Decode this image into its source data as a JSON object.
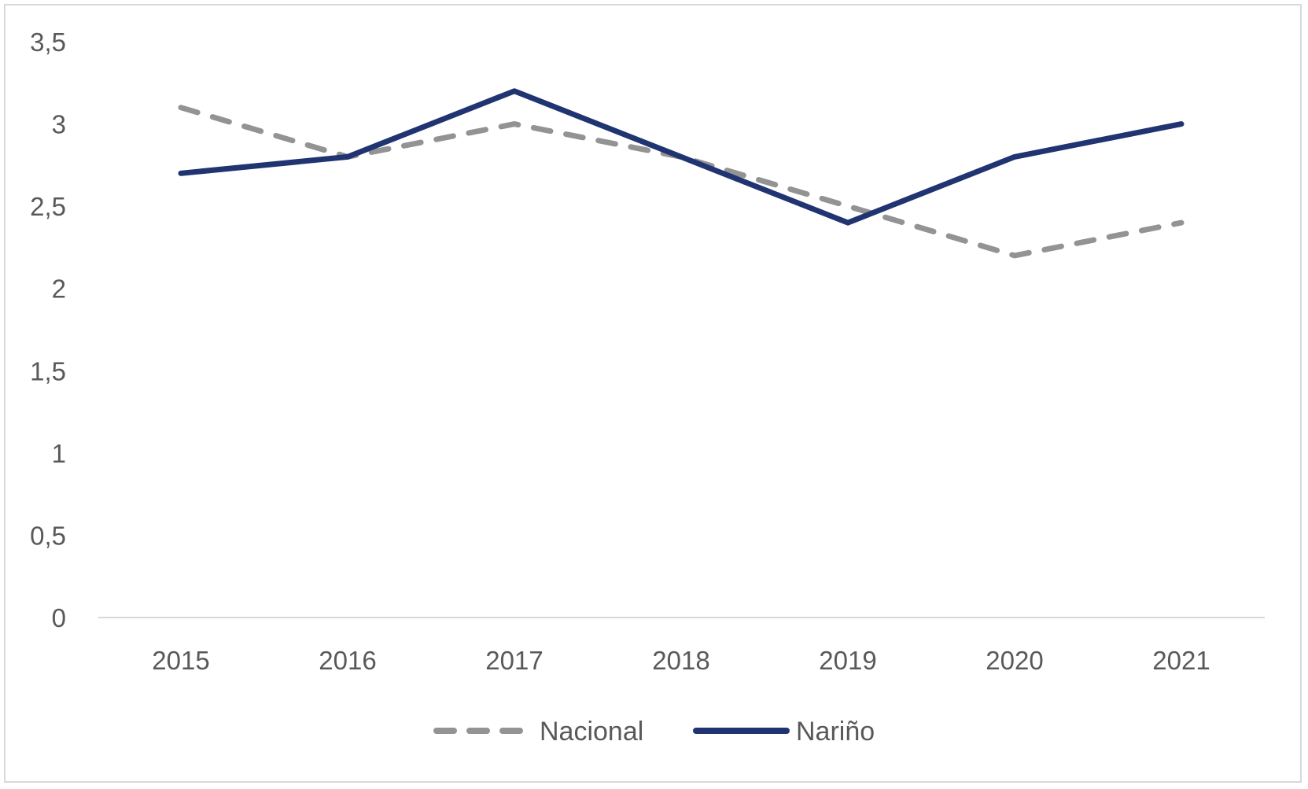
{
  "chart_data": {
    "type": "line",
    "title": "",
    "xlabel": "",
    "ylabel": "",
    "categories": [
      "2015",
      "2016",
      "2017",
      "2018",
      "2019",
      "2020",
      "2021"
    ],
    "ylim": [
      0,
      3.5
    ],
    "y_ticks": [
      0,
      0.5,
      1,
      1.5,
      2,
      2.5,
      3,
      3.5
    ],
    "y_tick_labels": [
      "0",
      "0,5",
      "1",
      "1,5",
      "2",
      "2,5",
      "3",
      "3,5"
    ],
    "grid": false,
    "legend_position": "bottom",
    "series": [
      {
        "name": "Nacional",
        "values": [
          3.1,
          2.8,
          3.0,
          2.8,
          2.5,
          2.2,
          2.4
        ],
        "color": "#939393",
        "style": "dashed"
      },
      {
        "name": "Nariño",
        "values": [
          2.7,
          2.8,
          3.2,
          2.8,
          2.4,
          2.8,
          3.0
        ],
        "color": "#1f3471",
        "style": "solid"
      }
    ]
  }
}
